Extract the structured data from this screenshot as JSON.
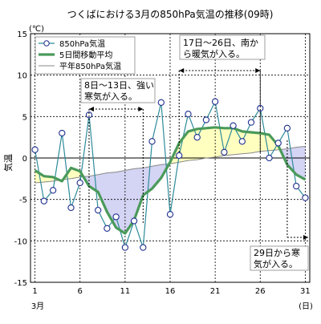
{
  "chart_data": {
    "type": "line",
    "title": "つくばにおける3月の850hPa気温の推移(09時)",
    "ylabel": "気温",
    "yunit": "(℃)",
    "xlabel_left": "3月",
    "xlabel_right": "(日)",
    "ylim": [
      -15,
      15
    ],
    "xlim": [
      0.5,
      31.5
    ],
    "yticks": [
      15,
      10,
      5,
      0,
      -5,
      -10,
      -15
    ],
    "xticks": [
      1,
      6,
      11,
      16,
      21,
      26,
      31
    ],
    "grid": true,
    "legend_position": "top-left",
    "x": [
      1,
      2,
      3,
      4,
      5,
      6,
      7,
      8,
      9,
      10,
      11,
      12,
      13,
      14,
      15,
      16,
      17,
      18,
      19,
      20,
      21,
      22,
      23,
      24,
      25,
      26,
      27,
      28,
      29,
      30,
      31
    ],
    "series": [
      {
        "name": "850hPa気温",
        "color": "#2e8b9a",
        "values": [
          1.0,
          -5.2,
          -3.9,
          3.0,
          -6.0,
          -3.0,
          5.2,
          -6.3,
          -8.5,
          -7.1,
          -10.8,
          -7.6,
          -10.8,
          2.0,
          6.7,
          -6.8,
          0.3,
          5.3,
          2.5,
          4.6,
          6.8,
          0.7,
          3.9,
          2.0,
          4.3,
          6.0,
          0.0,
          1.8,
          3.6,
          -3.4,
          -4.8
        ]
      },
      {
        "name": "5日間移動平均",
        "color": "#4a9a5a",
        "values": [
          -1.5,
          -2.2,
          -2.3,
          -2.8,
          -1.2,
          -1.6,
          -3.4,
          -4.1,
          -6.5,
          -8.4,
          -9.1,
          -7.5,
          -4.5,
          -3.7,
          -2.4,
          -0.5,
          1.8,
          3.2,
          3.5,
          3.6,
          3.7,
          3.6,
          3.6,
          3.2,
          3.1,
          3.0,
          2.8,
          1.5,
          -0.8,
          -2.0,
          -2.6
        ]
      },
      {
        "name": "平年850hPa気温",
        "color": "#888888",
        "values": [
          -3.0,
          -2.9,
          -2.8,
          -2.6,
          -2.5,
          -2.3,
          -2.2,
          -2.0,
          -1.8,
          -1.7,
          -1.5,
          -1.3,
          -1.2,
          -1.0,
          -0.8,
          -0.7,
          -0.5,
          -0.3,
          -0.2,
          0.0,
          0.1,
          0.3,
          0.4,
          0.5,
          0.6,
          0.8,
          0.9,
          1.0,
          1.1,
          1.3,
          1.4
        ]
      }
    ],
    "annotations": [
      {
        "text": "8日～13日、強い寒気が入る。",
        "from": 7,
        "to": 13
      },
      {
        "text": "17日～26日、南から暖気が入る。",
        "from": 17,
        "to": 26
      },
      {
        "text": "29日から寒気が入る。",
        "from": 29,
        "to": 31
      }
    ],
    "fill_warm_color": "#ffffc0",
    "fill_cold_color": "#d4d4f4"
  }
}
